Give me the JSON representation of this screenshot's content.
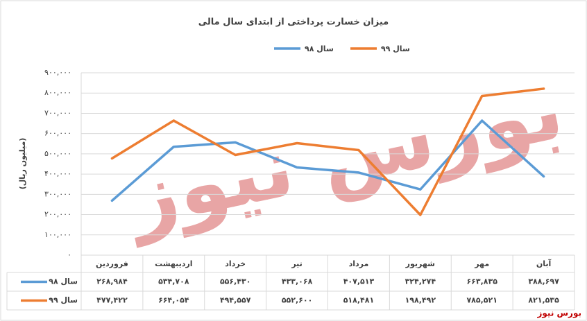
{
  "chart_data": {
    "type": "line",
    "title": "میزان خسارت پرداختی از ابتدای سال مالی",
    "y_label": "(میلیون ریال)",
    "watermark": "بورس نیوز",
    "source": "بورس نیوز",
    "categories": [
      "فروردین",
      "اردیبهشت",
      "خرداد",
      "تیر",
      "مرداد",
      "شهریور",
      "مهر",
      "آبان"
    ],
    "series": [
      {
        "name": "سال ۹۸",
        "color": "#5b9bd5",
        "values": [
          268984,
          534708,
          556430,
          433068,
          407513,
          324274,
          663835,
          388697
        ],
        "value_labels": [
          "۲۶۸,۹۸۴",
          "۵۳۴,۷۰۸",
          "۵۵۶,۴۳۰",
          "۴۳۳,۰۶۸",
          "۴۰۷,۵۱۳",
          "۳۲۴,۲۷۴",
          "۶۶۳,۸۳۵",
          "۳۸۸,۶۹۷"
        ]
      },
      {
        "name": "سال ۹۹",
        "color": "#ed7d31",
        "values": [
          477422,
          664054,
          494557,
          552600,
          518481,
          198492,
          785521,
          821535
        ],
        "value_labels": [
          "۴۷۷,۴۲۲",
          "۶۶۴,۰۵۴",
          "۴۹۴,۵۵۷",
          "۵۵۲,۶۰۰",
          "۵۱۸,۴۸۱",
          "۱۹۸,۴۹۲",
          "۷۸۵,۵۲۱",
          "۸۲۱,۵۳۵"
        ]
      }
    ],
    "ylim": [
      0,
      900000
    ],
    "yticks": [
      {
        "value": 0,
        "label": "۰"
      },
      {
        "value": 100000,
        "label": "۱۰۰,۰۰۰"
      },
      {
        "value": 200000,
        "label": "۲۰۰,۰۰۰"
      },
      {
        "value": 300000,
        "label": "۳۰۰,۰۰۰"
      },
      {
        "value": 400000,
        "label": "۴۰۰,۰۰۰"
      },
      {
        "value": 500000,
        "label": "۵۰۰,۰۰۰"
      },
      {
        "value": 600000,
        "label": "۶۰۰,۰۰۰"
      },
      {
        "value": 700000,
        "label": "۷۰۰,۰۰۰"
      },
      {
        "value": 800000,
        "label": "۸۰۰,۰۰۰"
      },
      {
        "value": 900000,
        "label": "۹۰۰,۰۰۰"
      }
    ],
    "grid": true,
    "legend": "top"
  }
}
